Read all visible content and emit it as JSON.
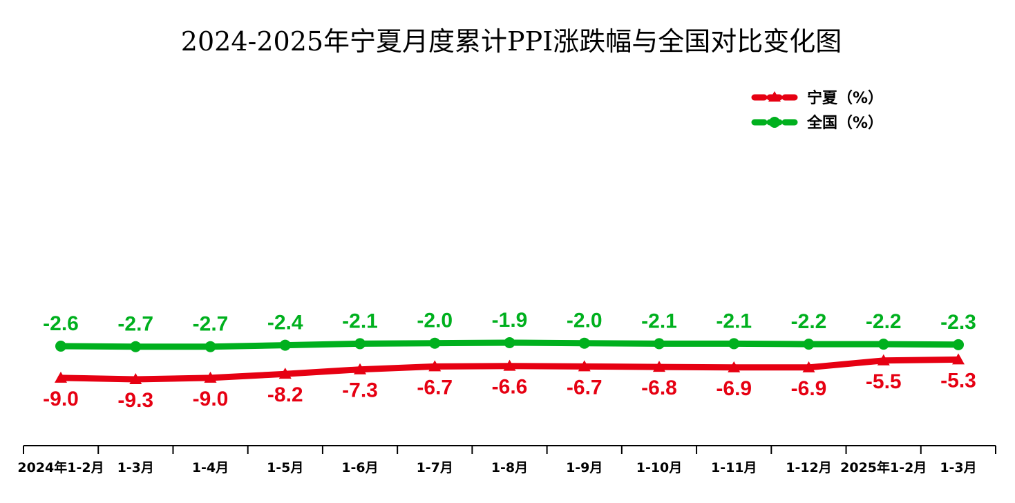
{
  "chart_data": {
    "type": "line",
    "title": "2024-2025年宁夏月度累计PPI涨跌幅与全国对比变化图",
    "categories": [
      "2024年1-2月",
      "1-3月",
      "1-4月",
      "1-5月",
      "1-6月",
      "1-7月",
      "1-8月",
      "1-9月",
      "1-10月",
      "1-11月",
      "1-12月",
      "2025年1-2月",
      "1-3月"
    ],
    "series": [
      {
        "name": "宁夏（%）",
        "color": "#e60012",
        "marker": "triangle",
        "label_position": "below",
        "values": [
          -9.0,
          -9.3,
          -9.0,
          -8.2,
          -7.3,
          -6.7,
          -6.6,
          -6.7,
          -6.8,
          -6.9,
          -6.9,
          -5.5,
          -5.3
        ],
        "labels": [
          "-9.0",
          "-9.3",
          "-9.0",
          "-8.2",
          "-7.3",
          "-6.7",
          "-6.6",
          "-6.7",
          "-6.8",
          "-6.9",
          "-6.9",
          "-5.5",
          "-5.3"
        ]
      },
      {
        "name": "全国（%）",
        "color": "#00b01e",
        "marker": "circle",
        "label_position": "above",
        "values": [
          -2.6,
          -2.7,
          -2.7,
          -2.4,
          -2.1,
          -2.0,
          -1.9,
          -2.0,
          -2.1,
          -2.1,
          -2.2,
          -2.2,
          -2.3
        ],
        "labels": [
          "-2.6",
          "-2.7",
          "-2.7",
          "-2.4",
          "-2.1",
          "-2.0",
          "-1.9",
          "-2.0",
          "-2.1",
          "-2.1",
          "-2.2",
          "-2.2",
          "-2.3"
        ]
      }
    ],
    "legend": {
      "position": "top-right"
    },
    "grid": false,
    "xlabel": "",
    "ylabel": ""
  }
}
